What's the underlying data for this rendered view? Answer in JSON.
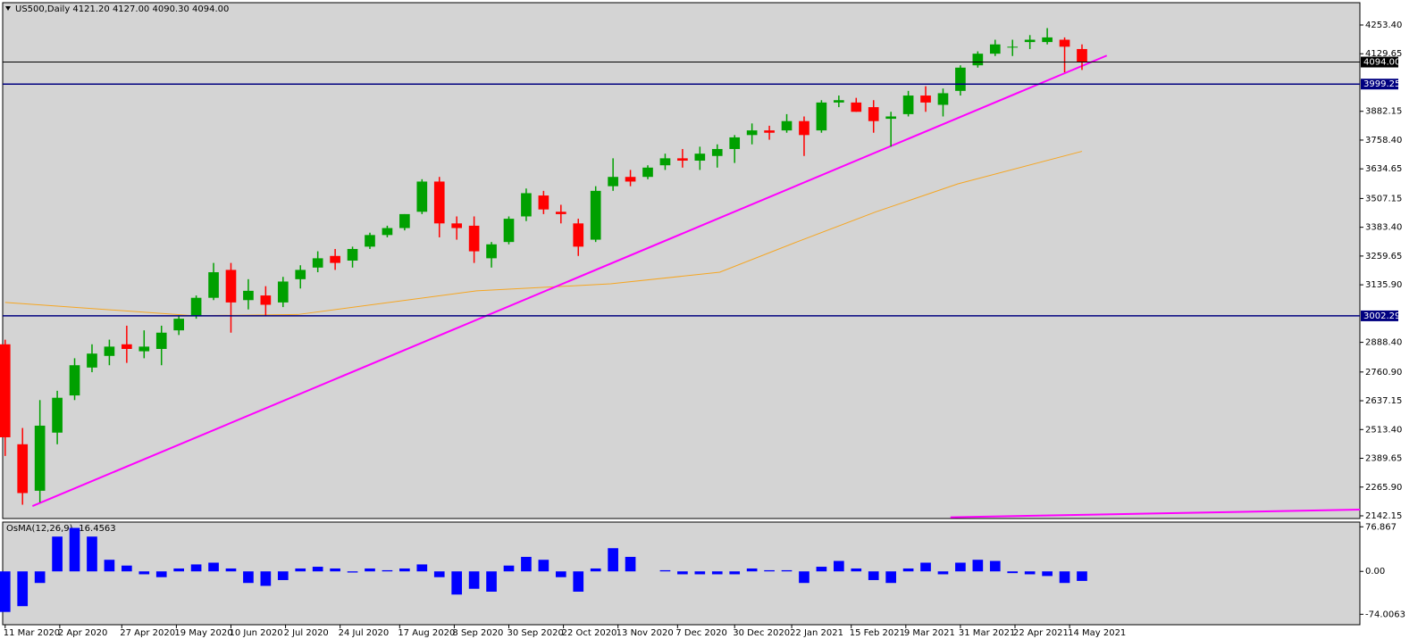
{
  "chart_data": [
    {
      "type": "candlestick",
      "title": "US500,Daily  4121.20 4127.00 4090.30 4094.00",
      "x": [
        "2020-03-11",
        "2020-03-18",
        "2020-03-25",
        "2020-04-01",
        "2020-04-08",
        "2020-04-15",
        "2020-04-22",
        "2020-04-29",
        "2020-05-06",
        "2020-05-13",
        "2020-05-20",
        "2020-05-27",
        "2020-06-03",
        "2020-06-10",
        "2020-06-17",
        "2020-06-24",
        "2020-07-01",
        "2020-07-08",
        "2020-07-15",
        "2020-07-22",
        "2020-07-29",
        "2020-08-05",
        "2020-08-12",
        "2020-08-19",
        "2020-08-26",
        "2020-09-02",
        "2020-09-09",
        "2020-09-16",
        "2020-09-23",
        "2020-09-30",
        "2020-10-07",
        "2020-10-14",
        "2020-10-21",
        "2020-10-28",
        "2020-11-04",
        "2020-11-11",
        "2020-11-18",
        "2020-11-25",
        "2020-12-02",
        "2020-12-09",
        "2020-12-16",
        "2020-12-23",
        "2020-12-30",
        "2021-01-06",
        "2021-01-13",
        "2021-01-20",
        "2021-01-27",
        "2021-02-03",
        "2021-02-10",
        "2021-02-17",
        "2021-02-24",
        "2021-03-03",
        "2021-03-10",
        "2021-03-17",
        "2021-03-24",
        "2021-03-31",
        "2021-04-07",
        "2021-04-14",
        "2021-04-21",
        "2021-04-28",
        "2021-05-05",
        "2021-05-12",
        "2021-05-19"
      ],
      "open": [
        2880,
        2450,
        2250,
        2500,
        2660,
        2780,
        2830,
        2880,
        2850,
        2860,
        2940,
        3000,
        3080,
        3200,
        3070,
        3090,
        3060,
        3160,
        3210,
        3260,
        3240,
        3300,
        3350,
        3380,
        3450,
        3580,
        3400,
        3390,
        3250,
        3320,
        3430,
        3520,
        3450,
        3400,
        3330,
        3560,
        3600,
        3600,
        3650,
        3680,
        3670,
        3690,
        3720,
        3780,
        3800,
        3800,
        3840,
        3800,
        3920,
        3920,
        3900,
        3850,
        3870,
        3950,
        3910,
        3970,
        4080,
        4130,
        4160,
        4180,
        4180,
        4190,
        4150
      ],
      "high": [
        2900,
        2520,
        2640,
        2680,
        2820,
        2880,
        2900,
        2960,
        2940,
        2960,
        3000,
        3090,
        3230,
        3230,
        3160,
        3130,
        3170,
        3220,
        3280,
        3290,
        3300,
        3360,
        3390,
        3440,
        3590,
        3600,
        3430,
        3430,
        3320,
        3430,
        3550,
        3540,
        3480,
        3420,
        3560,
        3680,
        3630,
        3650,
        3700,
        3720,
        3730,
        3740,
        3780,
        3830,
        3820,
        3870,
        3860,
        3930,
        3950,
        3940,
        3930,
        3880,
        3970,
        3990,
        3980,
        4080,
        4140,
        4190,
        4190,
        4210,
        4240,
        4200,
        4170
      ],
      "low": [
        2400,
        2190,
        2200,
        2450,
        2640,
        2760,
        2790,
        2800,
        2820,
        2790,
        2920,
        2990,
        3070,
        2930,
        3030,
        3000,
        3040,
        3120,
        3190,
        3200,
        3210,
        3290,
        3340,
        3370,
        3440,
        3340,
        3330,
        3230,
        3210,
        3310,
        3410,
        3440,
        3400,
        3260,
        3320,
        3540,
        3560,
        3590,
        3630,
        3640,
        3630,
        3640,
        3660,
        3740,
        3760,
        3790,
        3690,
        3790,
        3900,
        3880,
        3790,
        3730,
        3860,
        3880,
        3860,
        3950,
        4070,
        4120,
        4120,
        4150,
        4170,
        4050,
        4060
      ],
      "close": [
        2480,
        2240,
        2530,
        2650,
        2790,
        2840,
        2870,
        2860,
        2870,
        2930,
        2990,
        3080,
        3190,
        3060,
        3110,
        3050,
        3150,
        3200,
        3250,
        3230,
        3290,
        3350,
        3380,
        3440,
        3580,
        3400,
        3380,
        3280,
        3310,
        3420,
        3530,
        3460,
        3440,
        3300,
        3540,
        3600,
        3580,
        3640,
        3680,
        3670,
        3700,
        3720,
        3770,
        3800,
        3790,
        3840,
        3780,
        3920,
        3930,
        3880,
        3840,
        3860,
        3950,
        3920,
        3960,
        4070,
        4130,
        4170,
        4160,
        4190,
        4200,
        4160,
        4094
      ],
      "up_color": "#00a000",
      "down_color": "#ff0000",
      "moving_average": {
        "color": "#f5a623",
        "x": [
          "2020-03-11",
          "2020-05-26",
          "2020-07-07",
          "2020-09-17",
          "2020-11-10",
          "2020-12-24",
          "2021-01-24",
          "2021-02-25",
          "2021-03-30",
          "2021-05-19"
        ],
        "values": [
          3060,
          3003,
          3008,
          3110,
          3140,
          3190,
          3320,
          3450,
          3570,
          3710
        ]
      },
      "trendlines": [
        {
          "color": "#ff00ff",
          "x": [
            "2020-03-22",
            "2021-05-29"
          ],
          "values": [
            2184,
            4122
          ]
        },
        {
          "color": "#ff00ff",
          "x": [
            "2021-03-27",
            "2021-09-08"
          ],
          "values": [
            2136,
            2169
          ]
        }
      ],
      "levels": [
        {
          "value": 4094,
          "label": "4094.00",
          "color": "#000000"
        },
        {
          "value": 3999.25,
          "label": "3999.25",
          "color": "#000080"
        },
        {
          "value": 3002.29,
          "label": "3002.29",
          "color": "#000080"
        }
      ],
      "xlim": [
        "2020-03-10",
        "2021-09-08"
      ],
      "xticks": [
        {
          "value": "2020-03-11",
          "label": "11 Mar 2020"
        },
        {
          "value": "2020-04-02",
          "label": "2 Apr 2020"
        },
        {
          "value": "2020-04-27",
          "label": "27 Apr 2020"
        },
        {
          "value": "2020-05-19",
          "label": "19 May 2020"
        },
        {
          "value": "2020-06-10",
          "label": "10 Jun 2020"
        },
        {
          "value": "2020-07-02",
          "label": "2 Jul 2020"
        },
        {
          "value": "2020-07-24",
          "label": "24 Jul 2020"
        },
        {
          "value": "2020-08-17",
          "label": "17 Aug 2020"
        },
        {
          "value": "2020-09-08",
          "label": "8 Sep 2020"
        },
        {
          "value": "2020-09-30",
          "label": "30 Sep 2020"
        },
        {
          "value": "2020-10-22",
          "label": "22 Oct 2020"
        },
        {
          "value": "2020-11-13",
          "label": "13 Nov 2020"
        },
        {
          "value": "2020-12-07",
          "label": "7 Dec 2020"
        },
        {
          "value": "2020-12-30",
          "label": "30 Dec 2020"
        },
        {
          "value": "2021-01-22",
          "label": "22 Jan 2021"
        },
        {
          "value": "2021-02-15",
          "label": "15 Feb 2021"
        },
        {
          "value": "2021-03-09",
          "label": "9 Mar 2021"
        },
        {
          "value": "2021-03-31",
          "label": "31 Mar 2021"
        },
        {
          "value": "2021-04-22",
          "label": "22 Apr 2021"
        },
        {
          "value": "2021-05-14",
          "label": "14 May 2021"
        }
      ],
      "ylim": [
        2130.6,
        4349.4
      ],
      "yticks": [
        {
          "value": 4253.4,
          "label": "4253.40"
        },
        4129.65,
        3882.15,
        {
          "value": 3758.4,
          "label": "3758.40"
        },
        3634.65,
        3507.15,
        {
          "value": 3383.4,
          "label": "3383.40"
        },
        3259.65,
        {
          "value": 3135.9,
          "label": "3135.90"
        },
        {
          "value": 2888.4,
          "label": "2888.40"
        },
        {
          "value": 2760.9,
          "label": "2760.90"
        },
        2637.15,
        {
          "value": 2513.4,
          "label": "2513.40"
        },
        2389.65,
        {
          "value": 2265.9,
          "label": "2265.90"
        },
        2142.15
      ]
    },
    {
      "type": "histogram",
      "title": "OsMA(12,26,9) -16.4563",
      "color": "#0000ff",
      "x": [
        "2020-03-11",
        "2020-03-18",
        "2020-03-25",
        "2020-04-01",
        "2020-04-08",
        "2020-04-15",
        "2020-04-22",
        "2020-04-29",
        "2020-05-06",
        "2020-05-13",
        "2020-05-20",
        "2020-05-27",
        "2020-06-03",
        "2020-06-10",
        "2020-06-17",
        "2020-06-24",
        "2020-07-01",
        "2020-07-08",
        "2020-07-15",
        "2020-07-22",
        "2020-07-29",
        "2020-08-05",
        "2020-08-12",
        "2020-08-19",
        "2020-08-26",
        "2020-09-02",
        "2020-09-09",
        "2020-09-16",
        "2020-09-23",
        "2020-09-30",
        "2020-10-07",
        "2020-10-14",
        "2020-10-21",
        "2020-10-28",
        "2020-11-04",
        "2020-11-11",
        "2020-11-18",
        "2020-11-25",
        "2020-12-02",
        "2020-12-09",
        "2020-12-16",
        "2020-12-23",
        "2020-12-30",
        "2021-01-06",
        "2021-01-13",
        "2021-01-20",
        "2021-01-27",
        "2021-02-03",
        "2021-02-10",
        "2021-02-17",
        "2021-02-24",
        "2021-03-03",
        "2021-03-10",
        "2021-03-17",
        "2021-03-24",
        "2021-03-31",
        "2021-04-07",
        "2021-04-14",
        "2021-04-21",
        "2021-04-28",
        "2021-05-05",
        "2021-05-12",
        "2021-05-19"
      ],
      "values": [
        -70,
        -60,
        -20,
        60,
        75,
        60,
        20,
        10,
        -5,
        -10,
        5,
        12,
        15,
        5,
        -20,
        -25,
        -15,
        5,
        8,
        5,
        -2,
        5,
        2,
        5,
        12,
        -10,
        -40,
        -30,
        -35,
        10,
        25,
        20,
        -10,
        -35,
        5,
        40,
        25,
        0,
        2,
        -5,
        -5,
        -5,
        -5,
        5,
        2,
        2,
        -20,
        8,
        18,
        5,
        -15,
        -20,
        5,
        15,
        -5,
        15,
        20,
        18,
        -3,
        -5,
        -8,
        -20,
        -16.4563
      ],
      "ylim": [
        -92,
        85
      ],
      "yticks": [
        76.867,
        {
          "value": 0,
          "label": "0.00"
        },
        -74.0063
      ]
    }
  ]
}
